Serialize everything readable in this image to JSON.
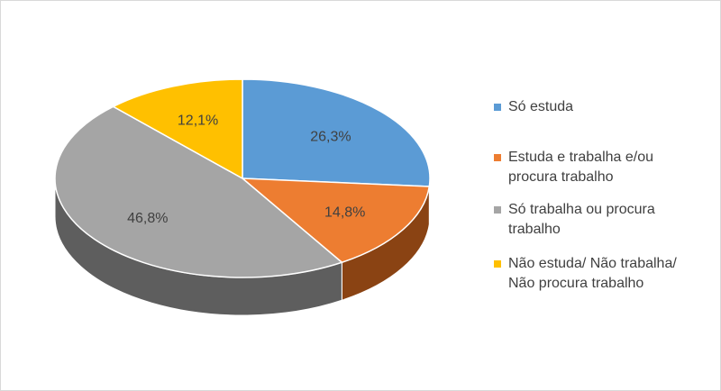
{
  "chart_data": {
    "type": "pie",
    "variant": "3d",
    "title": "",
    "categories": [
      "Só estuda",
      "Estuda e trabalha e/ou procura trabalho",
      "Só trabalha ou procura trabalho",
      "Não estuda/ Não trabalha/ Não procura trabalho"
    ],
    "legend_lines": [
      [
        "Só estuda"
      ],
      [
        "Estuda e trabalha e/ou",
        "procura trabalho"
      ],
      [
        "Só trabalha ou procura",
        "trabalho"
      ],
      [
        "Não estuda/ Não trabalha/",
        "Não procura trabalho"
      ]
    ],
    "values": [
      26.3,
      14.8,
      46.8,
      12.1
    ],
    "value_labels": [
      "26,3%",
      "14,8%",
      "46,8%",
      "12,1%"
    ],
    "unit": "%",
    "colors": [
      "#5B9BD5",
      "#ED7D31",
      "#A5A5A5",
      "#FFC000"
    ],
    "side_colors": [
      "#2E5E8C",
      "#8A4313",
      "#5E5E5E",
      "#A67C00"
    ],
    "legend_position": "right"
  }
}
